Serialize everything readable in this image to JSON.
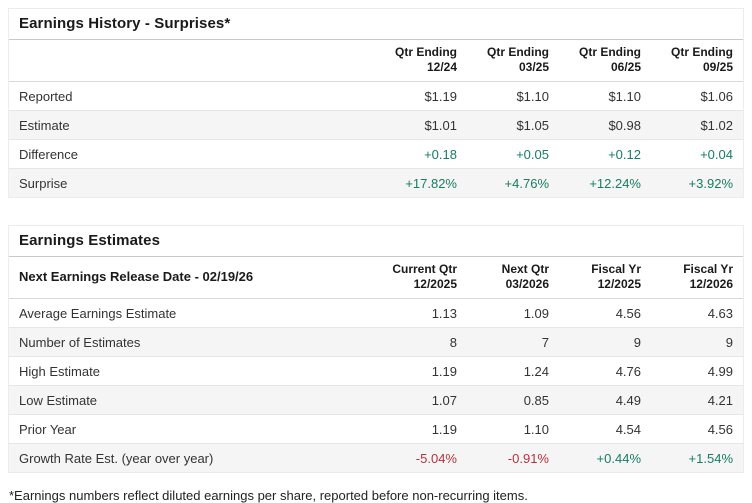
{
  "colors": {
    "positive": "#177d63",
    "negative": "#b6323d",
    "alt_row_bg": "#f5f5f5"
  },
  "earnings_history": {
    "title": "Earnings History - Surprises*",
    "columns": [
      {
        "line1": "Qtr Ending",
        "line2": "12/24"
      },
      {
        "line1": "Qtr Ending",
        "line2": "03/25"
      },
      {
        "line1": "Qtr Ending",
        "line2": "06/25"
      },
      {
        "line1": "Qtr Ending",
        "line2": "09/25"
      }
    ],
    "rows": [
      {
        "label": "Reported",
        "values": [
          "$1.19",
          "$1.10",
          "$1.10",
          "$1.06"
        ]
      },
      {
        "label": "Estimate",
        "values": [
          "$1.01",
          "$1.05",
          "$0.98",
          "$1.02"
        ]
      },
      {
        "label": "Difference",
        "values": [
          "+0.18",
          "+0.05",
          "+0.12",
          "+0.04"
        ],
        "value_colors": [
          "positive",
          "positive",
          "positive",
          "positive"
        ]
      },
      {
        "label": "Surprise",
        "values": [
          "+17.82%",
          "+4.76%",
          "+12.24%",
          "+3.92%"
        ],
        "value_colors": [
          "positive",
          "positive",
          "positive",
          "positive"
        ]
      }
    ]
  },
  "earnings_estimates": {
    "title": "Earnings Estimates",
    "release_date_label": "Next Earnings Release Date - 02/19/26",
    "columns": [
      {
        "line1": "Current Qtr",
        "line2": "12/2025"
      },
      {
        "line1": "Next Qtr",
        "line2": "03/2026"
      },
      {
        "line1": "Fiscal Yr",
        "line2": "12/2025"
      },
      {
        "line1": "Fiscal Yr",
        "line2": "12/2026"
      }
    ],
    "rows": [
      {
        "label": "Average Earnings Estimate",
        "values": [
          "1.13",
          "1.09",
          "4.56",
          "4.63"
        ]
      },
      {
        "label": "Number of Estimates",
        "values": [
          "8",
          "7",
          "9",
          "9"
        ]
      },
      {
        "label": "High Estimate",
        "values": [
          "1.19",
          "1.24",
          "4.76",
          "4.99"
        ]
      },
      {
        "label": "Low Estimate",
        "values": [
          "1.07",
          "0.85",
          "4.49",
          "4.21"
        ]
      },
      {
        "label": "Prior Year",
        "values": [
          "1.19",
          "1.10",
          "4.54",
          "4.56"
        ]
      },
      {
        "label": "Growth Rate Est. (year over year)",
        "values": [
          "-5.04%",
          "-0.91%",
          "+0.44%",
          "+1.54%"
        ],
        "value_colors": [
          "negative",
          "negative",
          "positive",
          "positive"
        ]
      }
    ]
  },
  "footnote": "*Earnings numbers reflect diluted earnings per share, reported before non-recurring items."
}
